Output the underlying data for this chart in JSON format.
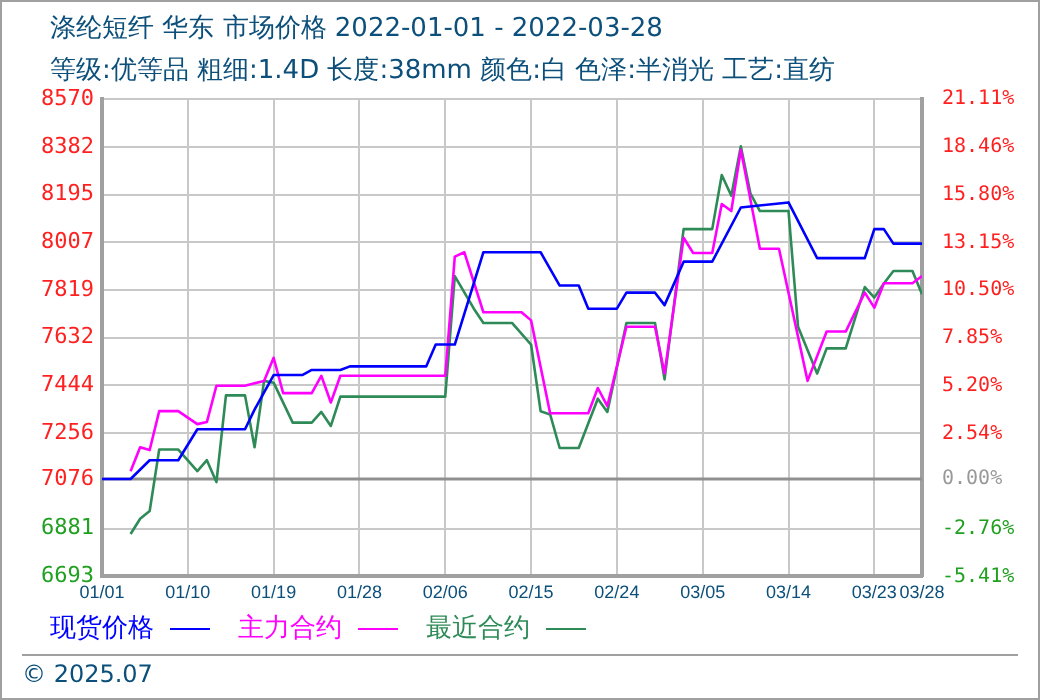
{
  "chart_data": {
    "type": "line",
    "title": "涤纶短纤 华东 市场价格 2022-01-01 - 2022-03-28",
    "subtitle": "等级:优等品 粗细:1.4D 长度:38mm 颜色:白 色泽:半消光 工艺:直纺",
    "annotations": [
      "© 2025.07"
    ],
    "xlim": [
      "2022-01-01",
      "2022-03-28"
    ],
    "xticks": [
      {
        "value": "2022-01-01",
        "label": "01/01"
      },
      {
        "value": "2022-01-10",
        "label": "01/10"
      },
      {
        "value": "2022-01-19",
        "label": "01/19"
      },
      {
        "value": "2022-01-28",
        "label": "01/28"
      },
      {
        "value": "2022-02-06",
        "label": "02/06"
      },
      {
        "value": "2022-02-15",
        "label": "02/15"
      },
      {
        "value": "2022-02-24",
        "label": "02/24"
      },
      {
        "value": "2022-03-05",
        "label": "03/05"
      },
      {
        "value": "2022-03-14",
        "label": "03/14"
      },
      {
        "value": "2022-03-23",
        "label": "03/23"
      },
      {
        "value": "2022-03-28",
        "label": "03/28"
      }
    ],
    "ylim": [
      6693,
      8570
    ],
    "yticks": [
      6693,
      6881,
      7076,
      7256,
      7444,
      7632,
      7819,
      8007,
      8195,
      8382,
      8570
    ],
    "y2lim": [
      -5.41,
      21.11
    ],
    "y2ticks": [
      {
        "value": -5.41,
        "label": "-5.41%"
      },
      {
        "value": -2.76,
        "label": "-2.76%"
      },
      {
        "value": 0,
        "label": "0.00%"
      },
      {
        "value": 2.54,
        "label": "2.54%"
      },
      {
        "value": 5.2,
        "label": "5.20%"
      },
      {
        "value": 7.85,
        "label": "7.85%"
      },
      {
        "value": 10.5,
        "label": "10.50%"
      },
      {
        "value": 13.15,
        "label": "13.15%"
      },
      {
        "value": 15.8,
        "label": "15.80%"
      },
      {
        "value": 18.46,
        "label": "18.46%"
      },
      {
        "value": 21.11,
        "label": "21.11%"
      }
    ],
    "grid": true,
    "legend": "bottom",
    "marker": "none",
    "line_style": "solid",
    "series": [
      {
        "name": "现货价格",
        "color": "#0000ff",
        "x": [
          "2022-01-01",
          "2022-01-04",
          "2022-01-06",
          "2022-01-09",
          "2022-01-11",
          "2022-01-16",
          "2022-01-17",
          "2022-01-19",
          "2022-01-22",
          "2022-01-23",
          "2022-01-26",
          "2022-01-27",
          "2022-02-04",
          "2022-02-05",
          "2022-02-07",
          "2022-02-10",
          "2022-02-16",
          "2022-02-18",
          "2022-02-20",
          "2022-02-21",
          "2022-02-24",
          "2022-02-25",
          "2022-02-28",
          "2022-03-01",
          "2022-03-03",
          "2022-03-06",
          "2022-03-09",
          "2022-03-14",
          "2022-03-17",
          "2022-03-22",
          "2022-03-23",
          "2022-03-24",
          "2022-03-25",
          "2022-03-28"
        ],
        "values": [
          7076,
          7076,
          7150,
          7150,
          7272,
          7272,
          7349,
          7485,
          7485,
          7505,
          7505,
          7519,
          7519,
          7605,
          7605,
          7968,
          7968,
          7837,
          7837,
          7746,
          7746,
          7809,
          7809,
          7760,
          7931,
          7931,
          8144,
          8164,
          7945,
          7945,
          8059,
          8059,
          8002,
          8002
        ]
      },
      {
        "name": "主力合约",
        "color": "#ff00ff",
        "x": [
          "2022-01-04",
          "2022-01-05",
          "2022-01-06",
          "2022-01-07",
          "2022-01-09",
          "2022-01-11",
          "2022-01-12",
          "2022-01-13",
          "2022-01-16",
          "2022-01-18",
          "2022-01-19",
          "2022-01-20",
          "2022-01-23",
          "2022-01-24",
          "2022-01-25",
          "2022-01-26",
          "2022-02-06",
          "2022-02-07",
          "2022-02-08",
          "2022-02-10",
          "2022-02-14",
          "2022-02-15",
          "2022-02-17",
          "2022-02-21",
          "2022-02-22",
          "2022-02-23",
          "2022-02-25",
          "2022-02-28",
          "2022-03-01",
          "2022-03-03",
          "2022-03-04",
          "2022-03-06",
          "2022-03-07",
          "2022-03-08",
          "2022-03-09",
          "2022-03-11",
          "2022-03-13",
          "2022-03-16",
          "2022-03-18",
          "2022-03-20",
          "2022-03-22",
          "2022-03-23",
          "2022-03-24",
          "2022-03-27",
          "2022-03-28"
        ],
        "values": [
          7107,
          7201,
          7190,
          7343,
          7343,
          7292,
          7300,
          7443,
          7443,
          7462,
          7553,
          7414,
          7414,
          7482,
          7377,
          7482,
          7482,
          7951,
          7968,
          7732,
          7732,
          7700,
          7335,
          7335,
          7434,
          7363,
          7675,
          7675,
          7491,
          8025,
          7965,
          7965,
          8158,
          8130,
          8371,
          7982,
          7982,
          7462,
          7656,
          7656,
          7809,
          7750,
          7846,
          7846,
          7874
        ]
      },
      {
        "name": "最近合约",
        "color": "#2e8b57",
        "x": [
          "2022-01-04",
          "2022-01-05",
          "2022-01-06",
          "2022-01-07",
          "2022-01-09",
          "2022-01-11",
          "2022-01-12",
          "2022-01-13",
          "2022-01-14",
          "2022-01-16",
          "2022-01-17",
          "2022-01-18",
          "2022-01-19",
          "2022-01-21",
          "2022-01-23",
          "2022-01-24",
          "2022-01-25",
          "2022-01-26",
          "2022-02-06",
          "2022-02-07",
          "2022-02-09",
          "2022-02-10",
          "2022-02-13",
          "2022-02-15",
          "2022-02-16",
          "2022-02-17",
          "2022-02-18",
          "2022-02-20",
          "2022-02-22",
          "2022-02-23",
          "2022-02-25",
          "2022-02-28",
          "2022-03-01",
          "2022-03-03",
          "2022-03-06",
          "2022-03-07",
          "2022-03-08",
          "2022-03-09",
          "2022-03-10",
          "2022-03-11",
          "2022-03-14",
          "2022-03-15",
          "2022-03-17",
          "2022-03-18",
          "2022-03-20",
          "2022-03-22",
          "2022-03-23",
          "2022-03-24",
          "2022-03-25",
          "2022-03-27",
          "2022-03-28"
        ],
        "values": [
          6860,
          6920,
          6950,
          7192,
          7192,
          7107,
          7150,
          7064,
          7405,
          7405,
          7201,
          7462,
          7455,
          7298,
          7298,
          7340,
          7285,
          7400,
          7400,
          7874,
          7746,
          7690,
          7690,
          7605,
          7343,
          7330,
          7198,
          7198,
          7392,
          7340,
          7690,
          7690,
          7468,
          8059,
          8059,
          8272,
          8190,
          8385,
          8200,
          8130,
          8130,
          7675,
          7491,
          7590,
          7590,
          7831,
          7790,
          7845,
          7894,
          7894,
          7803
        ]
      }
    ]
  }
}
